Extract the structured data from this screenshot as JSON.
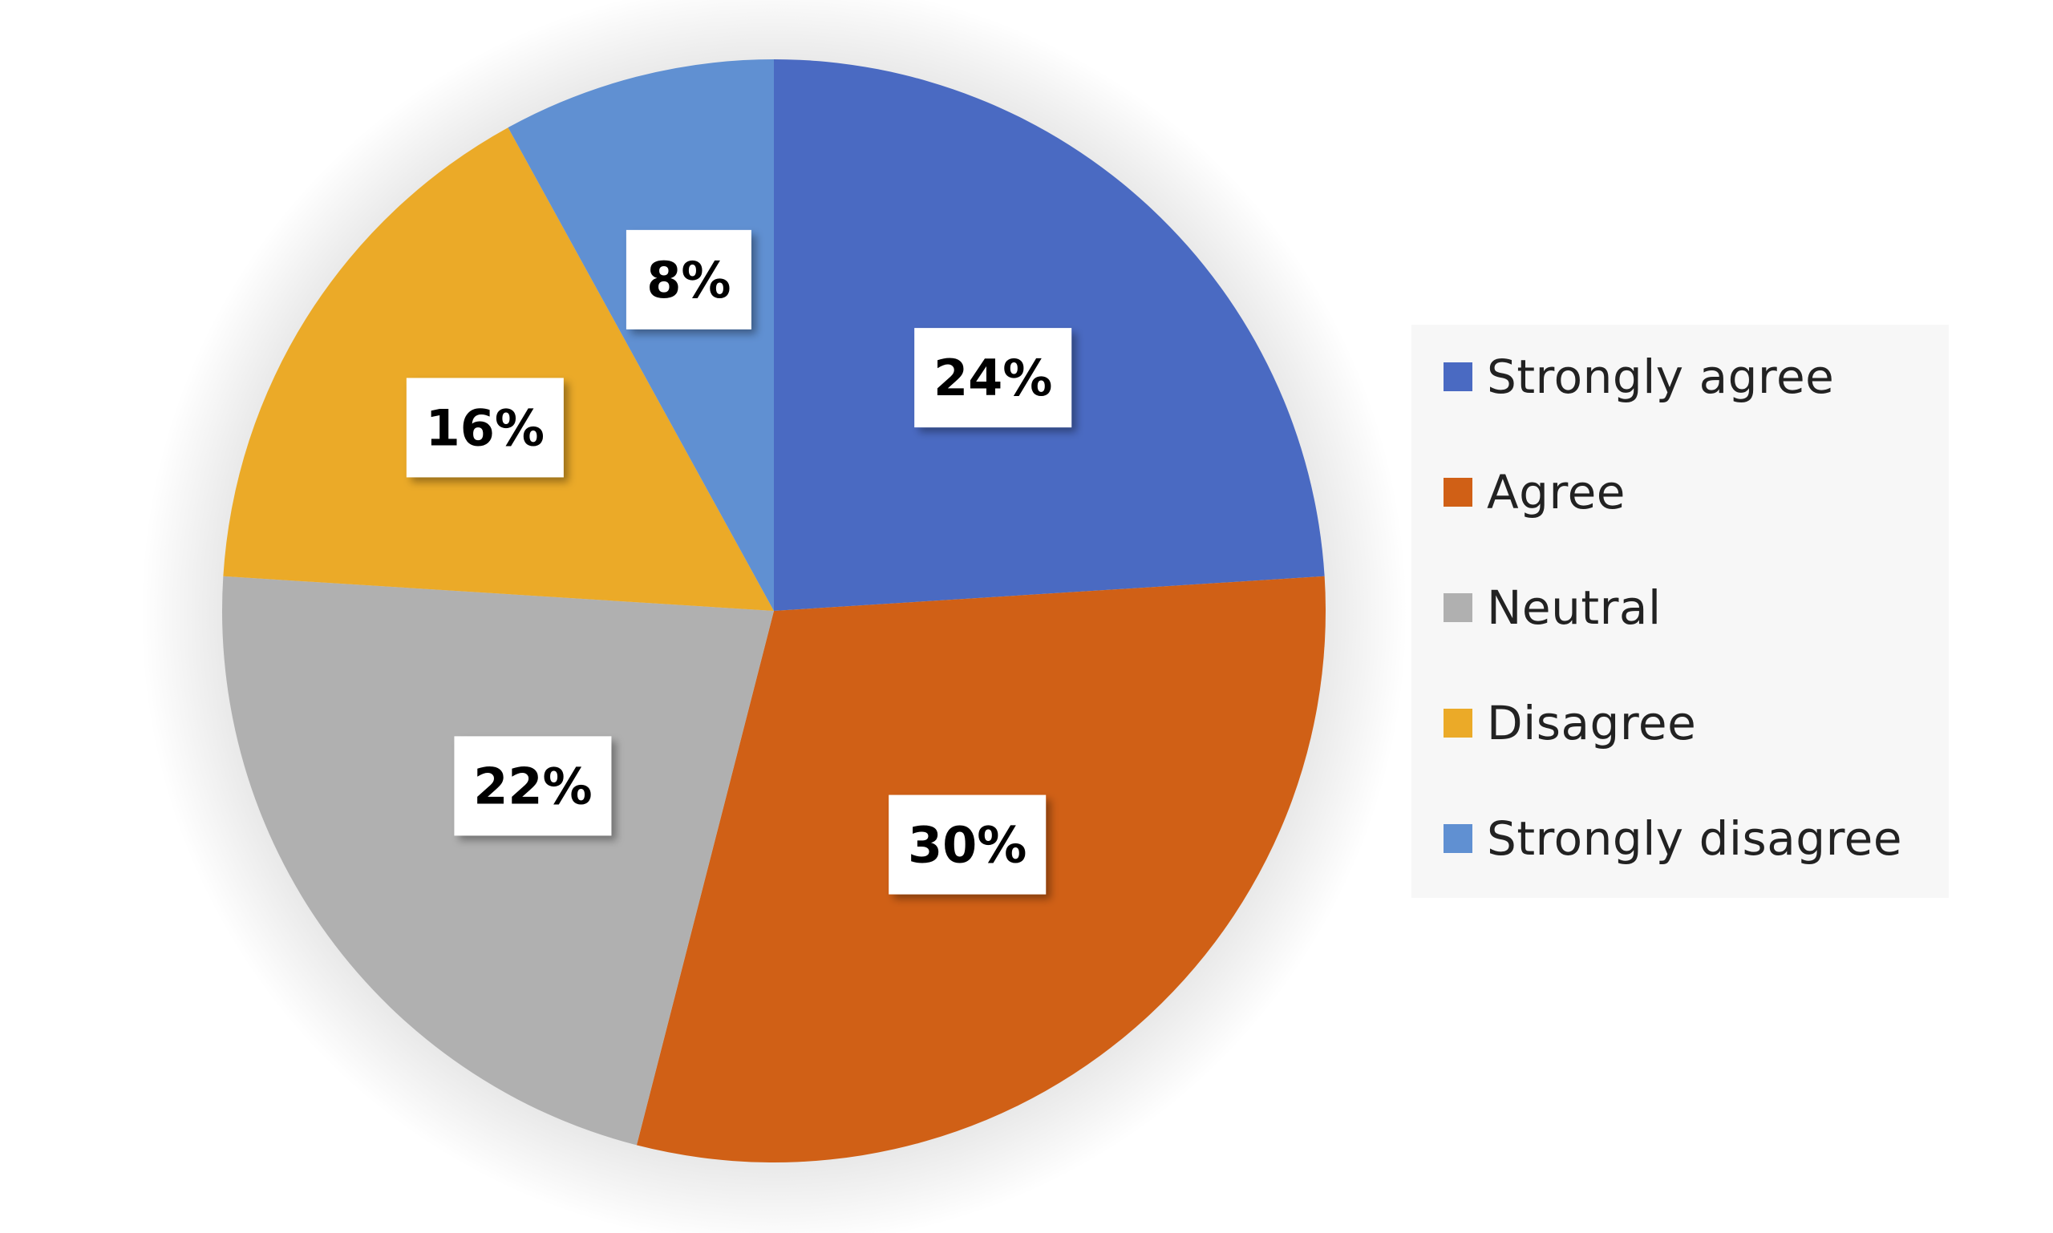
{
  "chart_data": {
    "type": "pie",
    "title": "",
    "categories": [
      "Strongly agree",
      "Agree",
      "Neutral",
      "Disagree",
      "Strongly disagree"
    ],
    "values": [
      24,
      30,
      22,
      16,
      8
    ],
    "data_labels": [
      "24%",
      "30%",
      "22%",
      "16%",
      "8%"
    ],
    "colors": [
      "#4A6AC2",
      "#D06016",
      "#B0B0B0",
      "#EBAA28",
      "#6090D2"
    ],
    "start_angle_deg": 0,
    "direction": "clockwise",
    "legend": {
      "placement": "right",
      "entries": [
        "Strongly agree",
        "Agree",
        "Neutral",
        "Disagree",
        "Strongly disagree"
      ]
    }
  }
}
